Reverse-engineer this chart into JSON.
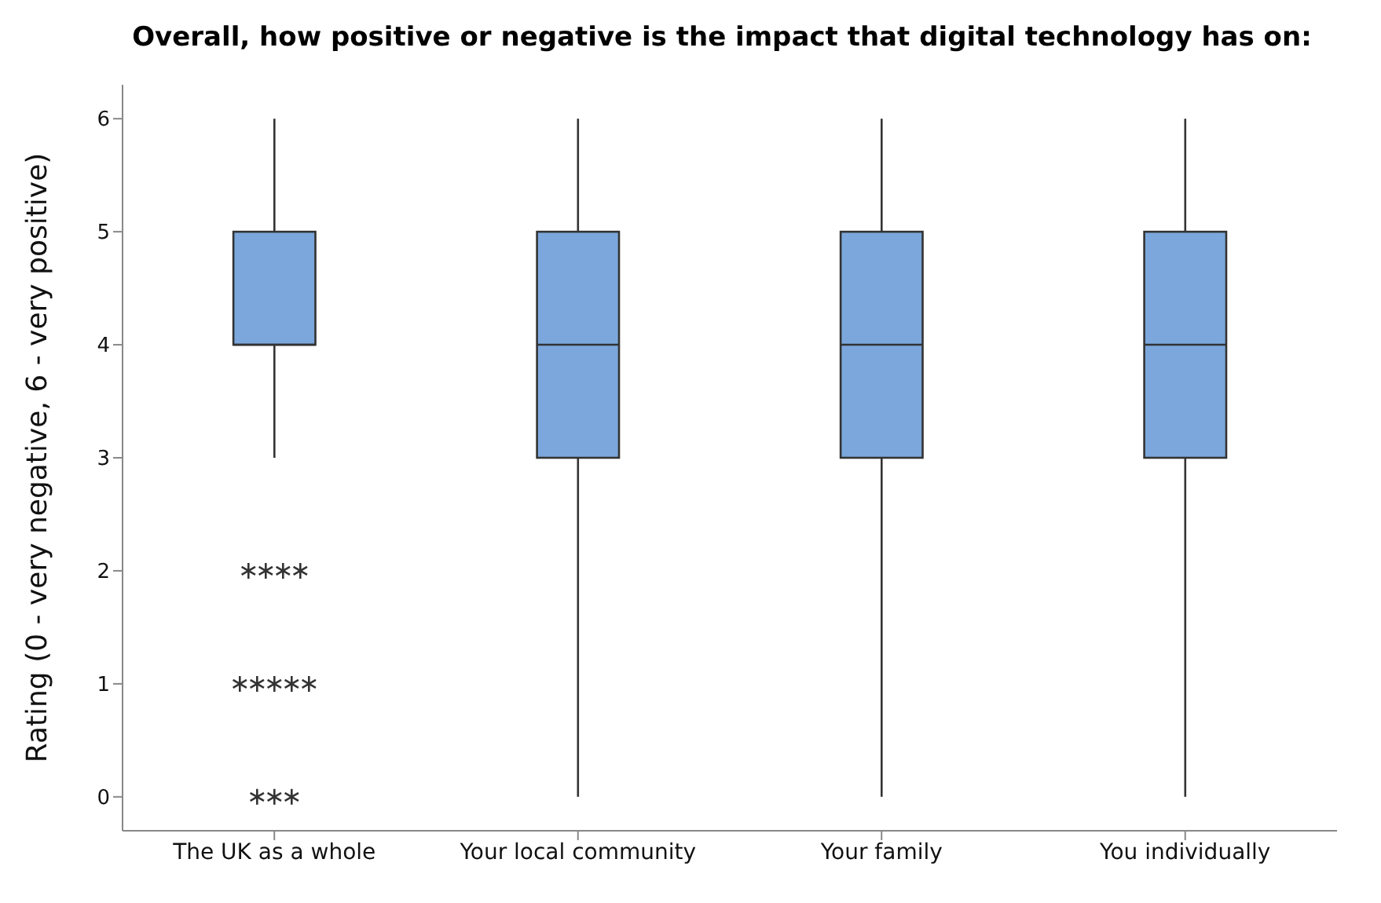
{
  "chart_data": {
    "type": "box",
    "title": "Overall, how positive or negative is the impact that digital technology has on:",
    "ylabel": "Rating (0 - very negative, 6 - very positive)",
    "categories": [
      "The UK as a whole",
      "Your local community",
      "Your family",
      "You individually"
    ],
    "ylim": [
      -0.3,
      6.3
    ],
    "yticks": [
      0,
      1,
      2,
      3,
      4,
      5,
      6
    ],
    "marker": "star",
    "series": [
      {
        "color": "#7ba7dc",
        "boxes": [
          {
            "low": 3,
            "q1": 4,
            "median": 4,
            "q3": 5,
            "high": 6,
            "outliers": [
              2,
              2,
              2,
              2,
              1,
              1,
              1,
              1,
              1,
              0,
              0,
              0
            ]
          },
          {
            "low": 0,
            "q1": 3,
            "median": 4,
            "q3": 5,
            "high": 6
          },
          {
            "low": 0,
            "q1": 3,
            "median": 4,
            "q3": 5,
            "high": 6
          },
          {
            "low": 0,
            "q1": 3,
            "median": 4,
            "q3": 5,
            "high": 6
          }
        ]
      }
    ]
  }
}
